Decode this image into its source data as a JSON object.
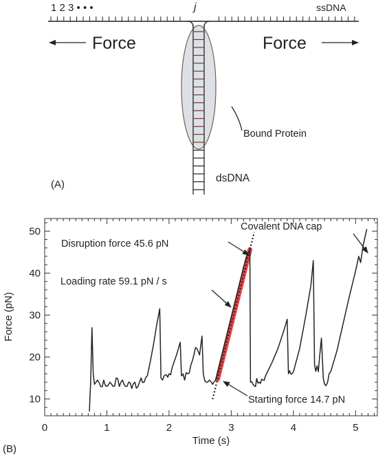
{
  "panel_a": {
    "label": "(A)",
    "index_label": "1 2 3 • • •",
    "j_label": "j",
    "ssdna_label": "ssDNA",
    "force_left": "Force",
    "force_right": "Force",
    "protein_label": "Bound Protein",
    "dsdna_label": "dsDNA"
  },
  "panel_b": {
    "label": "(B)",
    "annotations": {
      "disruption": "Disruption force 45.6 pN",
      "loading": "Loading rate 59.1 pN / s",
      "starting": "Starting force 14.7 pN",
      "cap": "Covalent DNA cap"
    }
  },
  "chart_data": {
    "type": "line",
    "xlabel": "Time (s)",
    "ylabel": "Force (pN)",
    "xlim": [
      0,
      5.35
    ],
    "ylim": [
      6,
      53
    ],
    "xticks": [
      0,
      1,
      2,
      3,
      4,
      5
    ],
    "yticks": [
      10,
      20,
      30,
      40,
      50
    ],
    "colors": {
      "trace": "#222222",
      "fit": "#e0242a"
    },
    "series": [
      {
        "values_xy": [
          [
            0.72,
            7
          ],
          [
            0.73,
            11
          ],
          [
            0.74,
            14
          ],
          [
            0.76,
            27
          ],
          [
            0.78,
            16
          ],
          [
            0.8,
            13.5
          ],
          [
            0.85,
            14.5
          ],
          [
            0.9,
            13
          ],
          [
            0.95,
            14.5
          ],
          [
            1.0,
            13
          ],
          [
            1.05,
            14
          ],
          [
            1.1,
            13
          ],
          [
            1.15,
            15
          ],
          [
            1.2,
            13
          ],
          [
            1.25,
            14.5
          ],
          [
            1.3,
            13
          ],
          [
            1.35,
            14
          ],
          [
            1.4,
            12.5
          ],
          [
            1.45,
            14
          ],
          [
            1.5,
            13
          ],
          [
            1.55,
            15
          ],
          [
            1.6,
            14
          ],
          [
            1.65,
            15.5
          ],
          [
            1.7,
            19
          ],
          [
            1.75,
            23
          ],
          [
            1.8,
            27.5
          ],
          [
            1.85,
            31.5
          ],
          [
            1.87,
            15
          ],
          [
            1.92,
            15.5
          ],
          [
            2.0,
            16
          ],
          [
            2.05,
            17.5
          ],
          [
            2.12,
            20.5
          ],
          [
            2.18,
            23.5
          ],
          [
            2.2,
            15.5
          ],
          [
            2.25,
            14.5
          ],
          [
            2.3,
            16
          ],
          [
            2.35,
            18
          ],
          [
            2.4,
            20.5
          ],
          [
            2.45,
            22
          ],
          [
            2.49,
            20.5
          ],
          [
            2.53,
            25
          ],
          [
            2.55,
            16
          ],
          [
            2.6,
            14
          ],
          [
            2.65,
            14.5
          ],
          [
            2.7,
            13.5
          ],
          [
            2.72,
            14
          ],
          [
            2.75,
            14.5
          ],
          [
            2.8,
            17.5
          ],
          [
            2.9,
            23.5
          ],
          [
            3.0,
            29.5
          ],
          [
            3.1,
            35.5
          ],
          [
            3.2,
            41.5
          ],
          [
            3.25,
            44
          ],
          [
            3.3,
            45.6
          ],
          [
            3.31,
            14
          ],
          [
            3.35,
            13.5
          ],
          [
            3.45,
            14
          ],
          [
            3.55,
            15.5
          ],
          [
            3.65,
            18.5
          ],
          [
            3.75,
            22
          ],
          [
            3.85,
            26.5
          ],
          [
            3.9,
            29
          ],
          [
            3.92,
            16
          ],
          [
            4.0,
            16.5
          ],
          [
            4.1,
            22
          ],
          [
            4.2,
            30
          ],
          [
            4.28,
            37
          ],
          [
            4.32,
            43
          ],
          [
            4.34,
            18
          ],
          [
            4.4,
            16.5
          ],
          [
            4.42,
            20
          ],
          [
            4.45,
            24.5
          ],
          [
            4.48,
            15
          ],
          [
            4.5,
            13.5
          ],
          [
            4.55,
            14
          ],
          [
            4.6,
            16.5
          ],
          [
            4.7,
            21.5
          ],
          [
            4.8,
            28
          ],
          [
            4.9,
            34.5
          ],
          [
            5.0,
            40.5
          ],
          [
            5.05,
            44
          ],
          [
            5.08,
            42.5
          ],
          [
            5.12,
            46.5
          ],
          [
            5.18,
            50.5
          ]
        ]
      }
    ]
  }
}
